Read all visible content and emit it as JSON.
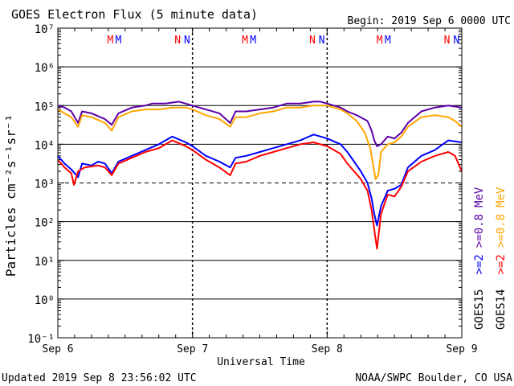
{
  "header": {
    "title": "GOES Electron Flux (5 minute data)",
    "begin": "Begin: 2019 Sep 6 0000 UTC"
  },
  "footer": {
    "updated": "Updated 2019 Sep  8 23:56:02 UTC",
    "source": "NOAA/SWPC Boulder, CO USA"
  },
  "axes": {
    "xlabel": "Universal Time",
    "ylabel": "Particles cm⁻²s⁻¹sr⁻¹"
  },
  "legend": [
    {
      "label": "GOES15",
      "color": "#000000"
    },
    {
      "label": ">=2",
      "color": "#0000ff"
    },
    {
      "label": ">=0.8",
      "color": "#5b00a8"
    },
    {
      "label": "MeV",
      "color": "#5b00a8"
    },
    {
      "label": "GOES14",
      "color": "#000000"
    },
    {
      "label": ">=2",
      "color": "#ff0000"
    },
    {
      "label": ">=0.8",
      "color": "#ffa500"
    },
    {
      "label": "MeV",
      "color": "#ffa500"
    }
  ],
  "markers": [
    {
      "day": 0.39,
      "text": "M",
      "color": "#ff0000"
    },
    {
      "day": 0.45,
      "text": "M",
      "color": "#0000ff"
    },
    {
      "day": 0.89,
      "text": "N",
      "color": "#ff0000"
    },
    {
      "day": 0.96,
      "text": "N",
      "color": "#0000ff"
    },
    {
      "day": 1.39,
      "text": "M",
      "color": "#ff0000"
    },
    {
      "day": 1.45,
      "text": "M",
      "color": "#0000ff"
    },
    {
      "day": 1.89,
      "text": "N",
      "color": "#ff0000"
    },
    {
      "day": 1.96,
      "text": "N",
      "color": "#0000ff"
    },
    {
      "day": 2.39,
      "text": "M",
      "color": "#ff0000"
    },
    {
      "day": 2.45,
      "text": "M",
      "color": "#0000ff"
    },
    {
      "day": 2.89,
      "text": "N",
      "color": "#ff0000"
    },
    {
      "day": 2.96,
      "text": "N",
      "color": "#0000ff"
    }
  ],
  "chart_data": {
    "type": "line",
    "title": "GOES Electron Flux (5 minute data)",
    "xlabel": "Universal Time",
    "ylabel": "Particles cm⁻²s⁻¹sr⁻¹",
    "x_ticks": [
      "Sep 6",
      "Sep 7",
      "Sep 8",
      "Sep 9"
    ],
    "y_ticks": [
      "10⁻¹",
      "10⁰",
      "10¹",
      "10²",
      "10³",
      "10⁴",
      "10⁵",
      "10⁶",
      "10⁷"
    ],
    "ylim_exp": [
      -1,
      7
    ],
    "xlim_days": [
      0,
      3
    ],
    "y_scale": "log",
    "grid": "horizontal lines at each decade, dashed line at 10^3",
    "series": [
      {
        "name": "GOES15 >=0.8 MeV",
        "color": "#5b00a8",
        "points": [
          [
            0,
            5.0
          ],
          [
            0.05,
            4.95
          ],
          [
            0.1,
            4.85
          ],
          [
            0.15,
            4.55
          ],
          [
            0.18,
            4.85
          ],
          [
            0.25,
            4.8
          ],
          [
            0.35,
            4.65
          ],
          [
            0.4,
            4.5
          ],
          [
            0.45,
            4.8
          ],
          [
            0.55,
            4.95
          ],
          [
            0.65,
            5.0
          ],
          [
            0.7,
            5.05
          ],
          [
            0.8,
            5.05
          ],
          [
            0.9,
            5.1
          ],
          [
            0.95,
            5.05
          ],
          [
            1.0,
            5.0
          ],
          [
            1.1,
            4.9
          ],
          [
            1.2,
            4.8
          ],
          [
            1.28,
            4.55
          ],
          [
            1.32,
            4.85
          ],
          [
            1.4,
            4.85
          ],
          [
            1.5,
            4.9
          ],
          [
            1.6,
            4.95
          ],
          [
            1.7,
            5.05
          ],
          [
            1.8,
            5.05
          ],
          [
            1.9,
            5.1
          ],
          [
            1.95,
            5.1
          ],
          [
            2.0,
            5.05
          ],
          [
            2.1,
            4.95
          ],
          [
            2.15,
            4.85
          ],
          [
            2.22,
            4.75
          ],
          [
            2.3,
            4.6
          ],
          [
            2.33,
            4.35
          ],
          [
            2.35,
            4.1
          ],
          [
            2.37,
            3.95
          ],
          [
            2.4,
            4.0
          ],
          [
            2.45,
            4.2
          ],
          [
            2.5,
            4.15
          ],
          [
            2.55,
            4.3
          ],
          [
            2.6,
            4.55
          ],
          [
            2.7,
            4.85
          ],
          [
            2.8,
            4.95
          ],
          [
            2.9,
            5.0
          ],
          [
            3.0,
            4.95
          ]
        ]
      },
      {
        "name": "GOES14 >=0.8 MeV",
        "color": "#ffa500",
        "points": [
          [
            0,
            4.9
          ],
          [
            0.05,
            4.8
          ],
          [
            0.1,
            4.7
          ],
          [
            0.15,
            4.45
          ],
          [
            0.18,
            4.75
          ],
          [
            0.25,
            4.7
          ],
          [
            0.35,
            4.55
          ],
          [
            0.4,
            4.35
          ],
          [
            0.45,
            4.7
          ],
          [
            0.55,
            4.85
          ],
          [
            0.65,
            4.9
          ],
          [
            0.75,
            4.9
          ],
          [
            0.85,
            4.95
          ],
          [
            0.95,
            4.95
          ],
          [
            1.0,
            4.9
          ],
          [
            1.1,
            4.75
          ],
          [
            1.2,
            4.65
          ],
          [
            1.28,
            4.45
          ],
          [
            1.32,
            4.7
          ],
          [
            1.4,
            4.7
          ],
          [
            1.5,
            4.8
          ],
          [
            1.6,
            4.85
          ],
          [
            1.7,
            4.95
          ],
          [
            1.8,
            4.95
          ],
          [
            1.9,
            5.0
          ],
          [
            2.0,
            5.0
          ],
          [
            2.1,
            4.9
          ],
          [
            2.15,
            4.8
          ],
          [
            2.22,
            4.6
          ],
          [
            2.28,
            4.3
          ],
          [
            2.32,
            3.9
          ],
          [
            2.34,
            3.5
          ],
          [
            2.36,
            3.1
          ],
          [
            2.38,
            3.2
          ],
          [
            2.4,
            3.8
          ],
          [
            2.45,
            4.0
          ],
          [
            2.5,
            4.05
          ],
          [
            2.55,
            4.2
          ],
          [
            2.6,
            4.45
          ],
          [
            2.7,
            4.7
          ],
          [
            2.8,
            4.75
          ],
          [
            2.9,
            4.7
          ],
          [
            2.95,
            4.6
          ],
          [
            3.0,
            4.45
          ]
        ]
      },
      {
        "name": "GOES15 >=2 MeV",
        "color": "#0000ff",
        "points": [
          [
            0,
            3.7
          ],
          [
            0.05,
            3.5
          ],
          [
            0.1,
            3.35
          ],
          [
            0.15,
            3.15
          ],
          [
            0.18,
            3.5
          ],
          [
            0.25,
            3.45
          ],
          [
            0.3,
            3.55
          ],
          [
            0.35,
            3.5
          ],
          [
            0.4,
            3.25
          ],
          [
            0.45,
            3.55
          ],
          [
            0.55,
            3.7
          ],
          [
            0.65,
            3.85
          ],
          [
            0.75,
            4.0
          ],
          [
            0.85,
            4.2
          ],
          [
            0.95,
            4.05
          ],
          [
            1.0,
            3.95
          ],
          [
            1.1,
            3.7
          ],
          [
            1.2,
            3.55
          ],
          [
            1.28,
            3.4
          ],
          [
            1.32,
            3.65
          ],
          [
            1.4,
            3.7
          ],
          [
            1.5,
            3.8
          ],
          [
            1.6,
            3.9
          ],
          [
            1.7,
            4.0
          ],
          [
            1.8,
            4.1
          ],
          [
            1.9,
            4.25
          ],
          [
            2.0,
            4.15
          ],
          [
            2.1,
            4.0
          ],
          [
            2.15,
            3.8
          ],
          [
            2.2,
            3.55
          ],
          [
            2.25,
            3.3
          ],
          [
            2.3,
            3.0
          ],
          [
            2.33,
            2.6
          ],
          [
            2.35,
            2.2
          ],
          [
            2.37,
            1.9
          ],
          [
            2.4,
            2.4
          ],
          [
            2.45,
            2.8
          ],
          [
            2.5,
            2.85
          ],
          [
            2.55,
            2.95
          ],
          [
            2.6,
            3.4
          ],
          [
            2.7,
            3.7
          ],
          [
            2.8,
            3.85
          ],
          [
            2.9,
            4.1
          ],
          [
            3.0,
            4.05
          ]
        ]
      },
      {
        "name": "GOES14 >=2 MeV",
        "color": "#ff0000",
        "points": [
          [
            0,
            3.6
          ],
          [
            0.05,
            3.4
          ],
          [
            0.1,
            3.25
          ],
          [
            0.12,
            2.95
          ],
          [
            0.15,
            3.3
          ],
          [
            0.2,
            3.4
          ],
          [
            0.3,
            3.45
          ],
          [
            0.35,
            3.4
          ],
          [
            0.4,
            3.2
          ],
          [
            0.45,
            3.5
          ],
          [
            0.55,
            3.65
          ],
          [
            0.65,
            3.8
          ],
          [
            0.75,
            3.9
          ],
          [
            0.85,
            4.1
          ],
          [
            0.95,
            3.95
          ],
          [
            1.0,
            3.85
          ],
          [
            1.1,
            3.6
          ],
          [
            1.2,
            3.4
          ],
          [
            1.28,
            3.2
          ],
          [
            1.32,
            3.5
          ],
          [
            1.4,
            3.55
          ],
          [
            1.5,
            3.7
          ],
          [
            1.6,
            3.8
          ],
          [
            1.7,
            3.9
          ],
          [
            1.8,
            4.0
          ],
          [
            1.9,
            4.05
          ],
          [
            2.0,
            3.95
          ],
          [
            2.1,
            3.75
          ],
          [
            2.15,
            3.5
          ],
          [
            2.2,
            3.3
          ],
          [
            2.25,
            3.1
          ],
          [
            2.3,
            2.8
          ],
          [
            2.33,
            2.3
          ],
          [
            2.35,
            1.8
          ],
          [
            2.37,
            1.3
          ],
          [
            2.4,
            2.2
          ],
          [
            2.45,
            2.7
          ],
          [
            2.5,
            2.65
          ],
          [
            2.55,
            2.9
          ],
          [
            2.6,
            3.3
          ],
          [
            2.7,
            3.55
          ],
          [
            2.8,
            3.7
          ],
          [
            2.9,
            3.8
          ],
          [
            2.95,
            3.7
          ],
          [
            3.0,
            3.3
          ]
        ]
      }
    ]
  }
}
